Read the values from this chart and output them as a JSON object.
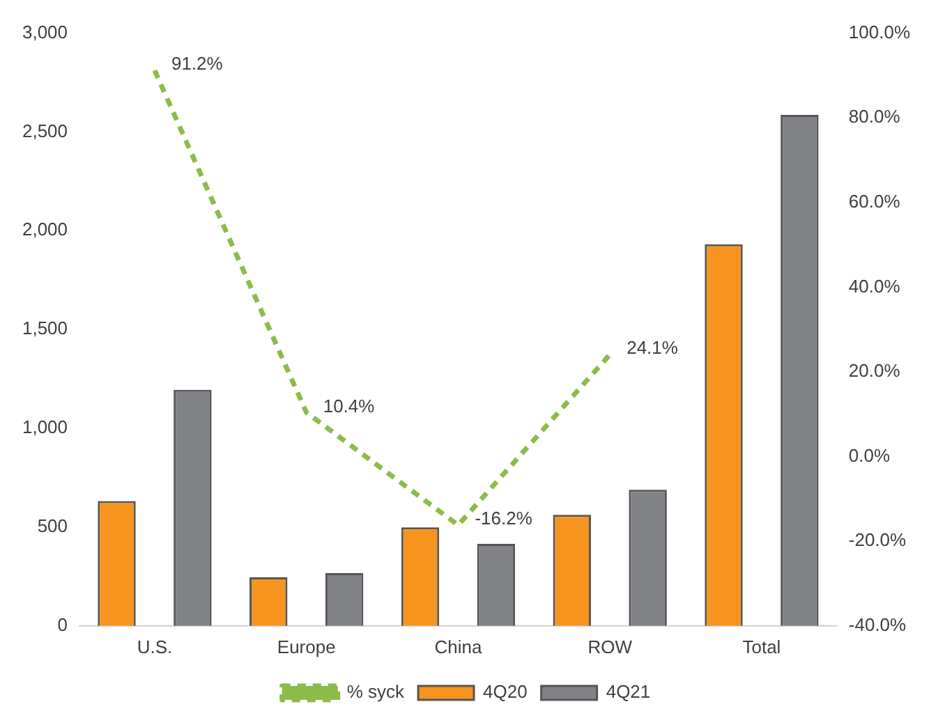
{
  "chart_data": {
    "type": "bar",
    "categories": [
      "U.S.",
      "Europe",
      "China",
      "ROW",
      "Total"
    ],
    "series": [
      {
        "name": "4Q20",
        "color": "#f7941d",
        "values": [
          632,
          246,
          499,
          562,
          1932
        ]
      },
      {
        "name": "4Q21",
        "color": "#808285",
        "values": [
          1195,
          267,
          415,
          689,
          2586
        ]
      },
      {
        "name": "% syck",
        "type": "line",
        "axis": "y2",
        "color": "#8dbb4a",
        "line_style": "dashed",
        "marker": "none",
        "values": [
          91.2,
          10.4,
          -16.2,
          24.1,
          null
        ],
        "value_labels": [
          "91.2%",
          "10.4%",
          "-16.2%",
          "24.1%",
          null
        ]
      }
    ],
    "ylim": [
      0,
      3000
    ],
    "yticks": [
      0,
      {
        "value": 500,
        "label": "500"
      },
      {
        "value": 1000,
        "label": "1,000"
      },
      {
        "value": 1500,
        "label": "1,500"
      },
      {
        "value": 2000,
        "label": "2,000"
      },
      {
        "value": 2500,
        "label": "2,500"
      },
      {
        "value": 3000,
        "label": "3,000"
      }
    ],
    "y2lim": [
      -40,
      100
    ],
    "y2ticks": [
      {
        "value": -40,
        "label": "-40.0%"
      },
      {
        "value": -20,
        "label": "-20.0%"
      },
      {
        "value": 0,
        "label": "0.0%"
      },
      {
        "value": 20,
        "label": "20.0%"
      },
      {
        "value": 40,
        "label": "40.0%"
      },
      {
        "value": 60,
        "label": "60.0%"
      },
      {
        "value": 80,
        "label": "80.0%"
      },
      {
        "value": 100,
        "label": "100.0%"
      }
    ],
    "grid": false,
    "legend": "bottom"
  }
}
